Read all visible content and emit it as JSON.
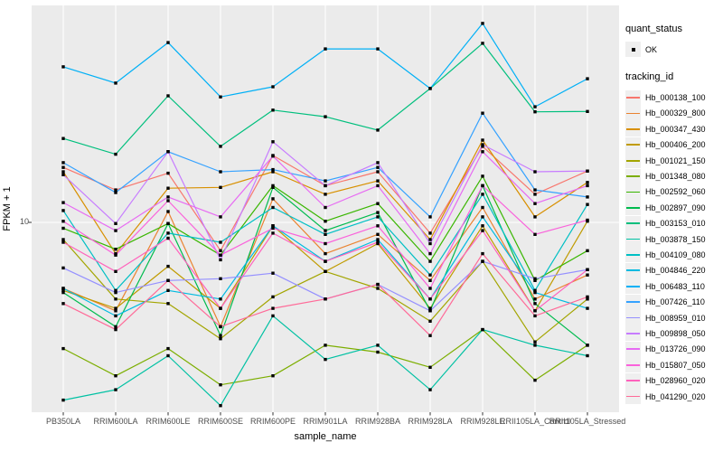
{
  "figure": {
    "background": "#FFFFFF",
    "panel_background": "#EBEBEB",
    "grid_color": "#FFFFFF",
    "tick_mark_color": "#333333",
    "tick_label_color": "#4D4D4D",
    "point_color": "#000000"
  },
  "axes": {
    "x_title": "sample_name",
    "y_title": "FPKM + 1",
    "y_tick_labels": [
      "10"
    ]
  },
  "legend": {
    "quant_status_title": "quant_status",
    "quant_status_items": [
      {
        "label": "OK",
        "marker": "point"
      }
    ],
    "tracking_id_title": "tracking_id"
  },
  "chart_data": {
    "type": "line",
    "title": "",
    "xlabel": "sample_name",
    "ylabel": "FPKM + 1",
    "y_scale": "log10",
    "y_ticks": [
      10
    ],
    "ylim": [
      1.9,
      62
    ],
    "grid": "major",
    "legend_position": "right",
    "marker": "black-point",
    "categories": [
      "PB350LA",
      "RRIM600LA",
      "RRIM600LE",
      "RRIM600SE",
      "RRIM600PE",
      "RRIM901LA",
      "RRIM928BA",
      "RRIM928LA",
      "RRIM928LE",
      "RRII105LA_Control",
      "RRII105LA_Stressed"
    ],
    "series": [
      {
        "name": "Hb_000138_100",
        "color": "#F8766D",
        "values": [
          16.2,
          13.3,
          15.4,
          7.8,
          18.0,
          13.8,
          15.6,
          9.1,
          19.5,
          12.8,
          15.7
        ]
      },
      {
        "name": "Hb_000329_800",
        "color": "#EA8331",
        "values": [
          5.6,
          4.6,
          11.0,
          4.0,
          12.3,
          7.6,
          9.0,
          6.0,
          11.4,
          5.1,
          6.3
        ]
      },
      {
        "name": "Hb_000347_430",
        "color": "#D89000",
        "values": [
          15.6,
          7.6,
          13.5,
          13.6,
          15.6,
          12.8,
          14.4,
          8.6,
          20.6,
          10.5,
          14.2
        ]
      },
      {
        "name": "Hb_000406_200",
        "color": "#C09B00",
        "values": [
          5.5,
          4.7,
          6.8,
          4.7,
          9.7,
          6.5,
          8.3,
          4.7,
          9.7,
          4.6,
          10.1
        ]
      },
      {
        "name": "Hb_001021_150",
        "color": "#A3A500",
        "values": [
          8.6,
          5.1,
          4.9,
          3.6,
          5.2,
          6.5,
          5.6,
          4.2,
          7.1,
          3.5,
          5.1
        ]
      },
      {
        "name": "Hb_001348_080",
        "color": "#7CAE00",
        "values": [
          3.3,
          2.6,
          3.3,
          2.4,
          2.6,
          3.4,
          3.2,
          2.8,
          3.9,
          2.5,
          3.4
        ]
      },
      {
        "name": "Hb_002592_060",
        "color": "#39B600",
        "values": [
          9.5,
          7.9,
          9.9,
          7.5,
          13.8,
          10.1,
          11.8,
          7.1,
          15.0,
          6.0,
          7.8
        ]
      },
      {
        "name": "Hb_002897_090",
        "color": "#00BB4E",
        "values": [
          5.4,
          4.0,
          9.9,
          3.7,
          13.6,
          9.3,
          10.9,
          4.6,
          13.8,
          4.9,
          3.4
        ]
      },
      {
        "name": "Hb_003153_010",
        "color": "#00BF7D",
        "values": [
          20.9,
          18.2,
          30.4,
          19.5,
          26.8,
          25.3,
          22.5,
          32.4,
          48.2,
          26.4,
          26.5
        ]
      },
      {
        "name": "Hb_003878_150",
        "color": "#00C1A3",
        "values": [
          2.1,
          2.3,
          3.1,
          2.0,
          4.4,
          3.0,
          3.4,
          2.3,
          3.9,
          3.4,
          3.1
        ]
      },
      {
        "name": "Hb_004109_080",
        "color": "#00BFC4",
        "values": [
          11.1,
          5.5,
          9.1,
          8.4,
          11.4,
          9.0,
          10.5,
          6.3,
          12.8,
          5.5,
          11.7
        ]
      },
      {
        "name": "Hb_004846_220",
        "color": "#00BAE0",
        "values": [
          5.6,
          4.4,
          5.5,
          5.1,
          9.7,
          7.1,
          8.6,
          5.1,
          10.5,
          5.4,
          4.7
        ]
      },
      {
        "name": "Hb_006483_110",
        "color": "#00B0F6",
        "values": [
          39.2,
          34.0,
          48.5,
          30.1,
          32.9,
          45.9,
          45.9,
          32.4,
          57.4,
          27.6,
          35.3
        ]
      },
      {
        "name": "Hb_007426_110",
        "color": "#35A2FF",
        "values": [
          16.9,
          13.0,
          18.6,
          15.6,
          15.9,
          14.4,
          16.2,
          10.5,
          26.1,
          13.3,
          12.5
        ]
      },
      {
        "name": "Hb_008959_010",
        "color": "#9590FF",
        "values": [
          6.7,
          5.4,
          6.0,
          6.1,
          6.4,
          5.1,
          5.8,
          4.6,
          7.1,
          6.1,
          6.6
        ]
      },
      {
        "name": "Hb_009898_050",
        "color": "#C77CFF",
        "values": [
          15.2,
          9.9,
          18.6,
          7.2,
          20.3,
          13.8,
          16.9,
          8.3,
          19.8,
          15.6,
          15.7
        ]
      },
      {
        "name": "Hb_013726_090",
        "color": "#E76BF3",
        "values": [
          11.9,
          9.3,
          12.5,
          10.5,
          17.9,
          11.4,
          13.8,
          7.6,
          18.6,
          11.8,
          13.8
        ]
      },
      {
        "name": "Hb_015807_050",
        "color": "#FA62DB",
        "values": [
          10.1,
          7.5,
          12.1,
          7.5,
          9.5,
          8.3,
          9.7,
          5.6,
          13.8,
          9.0,
          10.2
        ]
      },
      {
        "name": "Hb_028960_020",
        "color": "#FF62BC",
        "values": [
          8.4,
          6.5,
          8.7,
          4.7,
          9.1,
          7.1,
          8.4,
          5.1,
          9.3,
          4.6,
          6.6
        ]
      },
      {
        "name": "Hb_041290_020",
        "color": "#FF6A98",
        "values": [
          4.9,
          3.9,
          6.0,
          4.0,
          4.7,
          5.1,
          5.8,
          3.7,
          7.6,
          4.4,
          5.2
        ]
      }
    ]
  }
}
